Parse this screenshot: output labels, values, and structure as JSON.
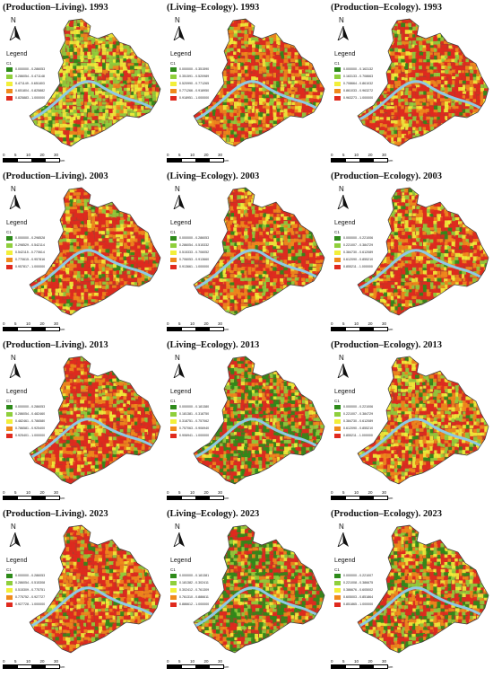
{
  "colors": {
    "class1": "#2e8b1a",
    "class2": "#8fcf3c",
    "class3": "#f2ef3a",
    "class4": "#f08a1c",
    "class5": "#e02a1e",
    "river": "#8ec9e4",
    "base": "#b03a2a"
  },
  "legend_label": "Legend",
  "field_label": "C1",
  "north_label": "N",
  "scale": {
    "ticks": [
      "0",
      "5",
      "10",
      "20",
      "30"
    ],
    "unit": "km"
  },
  "panels": [
    {
      "title": "(Production–Living). 1993",
      "ranges": [
        "0.000000 - 0.286053",
        "0.286054 - 0.471148",
        "0.471149 - 0.651803",
        "0.651804 - 0.825882",
        "0.825883 - 1.000000"
      ],
      "mix": [
        0.1,
        0.28,
        0.32,
        0.14,
        0.16
      ]
    },
    {
      "title": "(Living–Ecology). 1993",
      "ranges": [
        "0.000000 - 0.351590",
        "0.351591 - 0.520989",
        "0.520990 - 0.771265",
        "0.771266 - 0.918950",
        "0.918951 - 1.000000"
      ],
      "mix": [
        0.08,
        0.15,
        0.17,
        0.25,
        0.35
      ]
    },
    {
      "title": "(Production–Ecology). 1993",
      "ranges": [
        "0.000000 - 0.163132",
        "0.163133 - 0.708663",
        "0.708664 - 0.861032",
        "0.861033 - 0.963272",
        "0.963273 - 1.000000"
      ],
      "mix": [
        0.06,
        0.12,
        0.14,
        0.26,
        0.42
      ]
    },
    {
      "title": "(Production–Living). 2003",
      "ranges": [
        "0.000000 - 0.298528",
        "0.298529 - 0.542114",
        "0.542115 - 0.770614",
        "0.770615 - 0.957816",
        "0.957817 - 1.000000"
      ],
      "mix": [
        0.06,
        0.12,
        0.14,
        0.26,
        0.42
      ]
    },
    {
      "title": "(Living–Ecology). 2003",
      "ranges": [
        "0.000000 - 0.286053",
        "0.286054 - 0.515332",
        "0.515333 - 0.706052",
        "0.706053 - 0.913660",
        "0.913661 - 1.000000"
      ],
      "mix": [
        0.08,
        0.12,
        0.14,
        0.26,
        0.4
      ]
    },
    {
      "title": "(Production–Ecology). 2003",
      "ranges": [
        "0.000000 - 0.221006",
        "0.221007 - 0.384729",
        "0.384730 - 0.612089",
        "0.612090 - 0.855210",
        "0.855211 - 1.000000"
      ],
      "mix": [
        0.07,
        0.13,
        0.14,
        0.26,
        0.4
      ]
    },
    {
      "title": "(Production–Living). 2013",
      "ranges": [
        "0.000000 - 0.286053",
        "0.286054 - 0.482460",
        "0.482461 - 0.786580",
        "0.786581 - 0.925400",
        "0.925401 - 1.000000"
      ],
      "mix": [
        0.07,
        0.12,
        0.14,
        0.26,
        0.41
      ]
    },
    {
      "title": "(Living–Ecology). 2013",
      "ranges": [
        "0.000000 - 0.181380",
        "0.181381 - 0.318750",
        "0.318751 - 0.757062",
        "0.757063 - 0.906940",
        "0.906941 - 1.000000"
      ],
      "mix": [
        0.28,
        0.18,
        0.1,
        0.18,
        0.26
      ]
    },
    {
      "title": "(Production–Ecology). 2013",
      "ranges": [
        "0.000000 - 0.221006",
        "0.221007 - 0.384729",
        "0.384730 - 0.612089",
        "0.612090 - 0.855210",
        "0.855211 - 1.000000"
      ],
      "mix": [
        0.06,
        0.16,
        0.22,
        0.26,
        0.3
      ]
    },
    {
      "title": "(Production–Living). 2023",
      "ranges": [
        "0.000000 - 0.286053",
        "0.286054 - 0.515308",
        "0.515309 - 0.775751",
        "0.775752 - 0.927727",
        "0.927728 - 1.000000"
      ],
      "mix": [
        0.07,
        0.12,
        0.14,
        0.26,
        0.41
      ]
    },
    {
      "title": "(Living–Ecology). 2023",
      "ranges": [
        "0.000000 - 0.181381",
        "0.181382 - 0.302411",
        "0.302412 - 0.761309",
        "0.761310 - 0.886611",
        "0.886612 - 1.000000"
      ],
      "mix": [
        0.3,
        0.18,
        0.1,
        0.16,
        0.26
      ]
    },
    {
      "title": "(Production–Ecology). 2023",
      "ranges": [
        "0.000000 - 0.221007",
        "0.221008 - 0.386675",
        "0.386676 - 0.605002",
        "0.605003 - 0.851864",
        "0.851865 - 1.000000"
      ],
      "mix": [
        0.16,
        0.18,
        0.16,
        0.22,
        0.28
      ]
    }
  ]
}
